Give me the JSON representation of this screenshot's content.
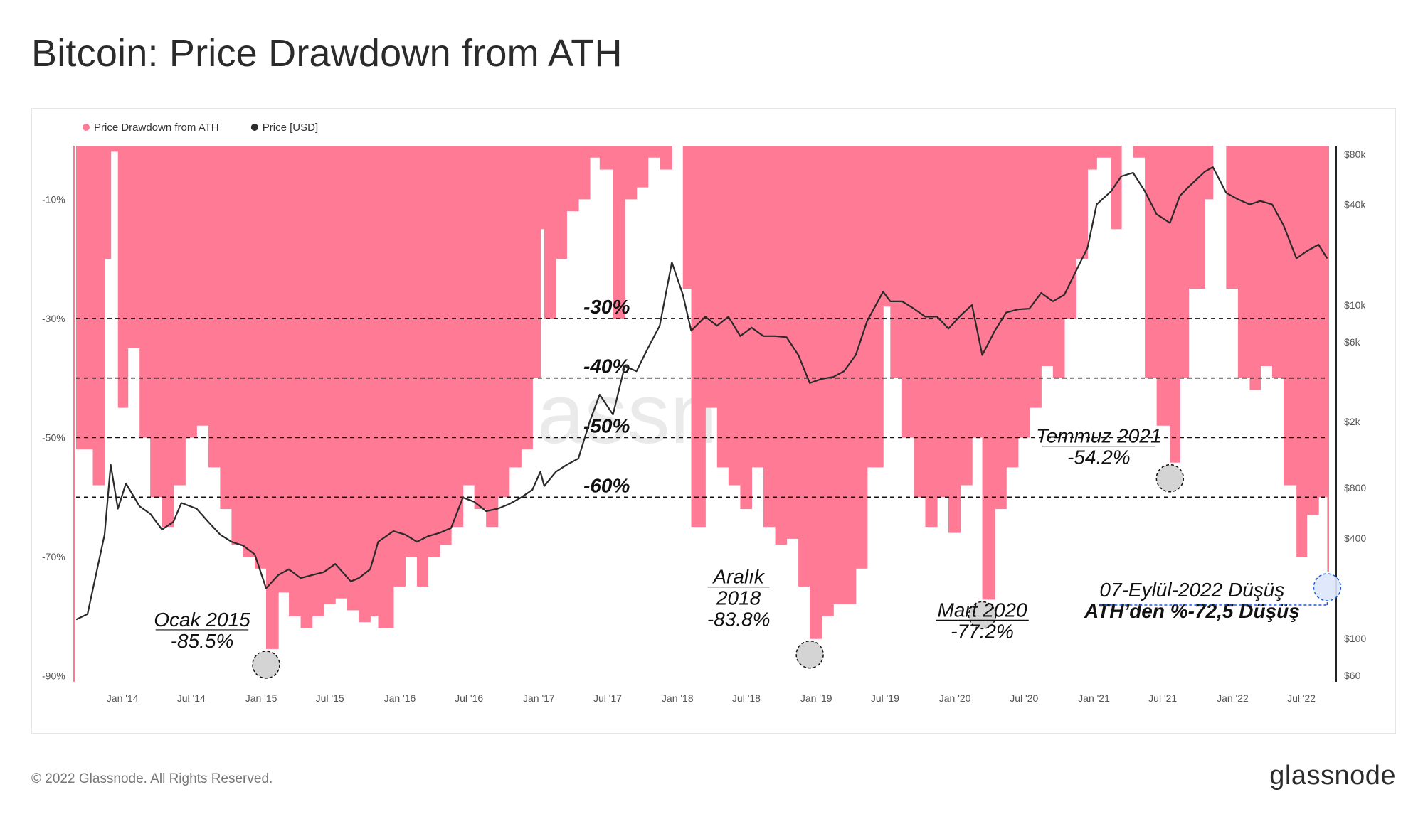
{
  "page": {
    "title": "Bitcoin: Price Drawdown from ATH",
    "copyright": "© 2022 Glassnode. All Rights Reserved.",
    "logo": "glassnode",
    "watermark": "glassnode"
  },
  "colors": {
    "drawdown": "#ff7a95",
    "price": "#2a2a2a",
    "highlight": "#1a5fe0",
    "marker": "#cccccc"
  },
  "chart_data": {
    "type": "area",
    "legend": [
      {
        "name": "Price Drawdown from ATH",
        "color": "#ff7a95"
      },
      {
        "name": "Price [USD]",
        "color": "#2a2a2a"
      }
    ],
    "legend_position": "top-left",
    "grid": false,
    "x_ticks": [
      "Jan '14",
      "Jul '14",
      "Jan '15",
      "Jul '15",
      "Jan '16",
      "Jul '16",
      "Jan '17",
      "Jul '17",
      "Jan '18",
      "Jul '18",
      "Jan '19",
      "Jul '19",
      "Jan '20",
      "Jul '20",
      "Jan '21",
      "Jul '21",
      "Jan '22",
      "Jul '22"
    ],
    "xlim": [
      "2013-09-01",
      "2022-09-10"
    ],
    "y_left": {
      "ticks": [
        "-10%",
        "-30%",
        "-50%",
        "-70%",
        "-90%"
      ],
      "tick_values": [
        -10,
        -30,
        -50,
        -70,
        -90
      ],
      "ylim": [
        -91,
        -1
      ]
    },
    "y_right": {
      "scale": "log",
      "ticks": [
        "$80k",
        "$40k",
        "$10k",
        "$6k",
        "$2k",
        "$800",
        "$400",
        "$100",
        "$60"
      ],
      "tick_values": [
        80000,
        40000,
        10000,
        6000,
        2000,
        800,
        400,
        100,
        60
      ],
      "ylim": [
        55,
        90000
      ]
    },
    "drawdown_series": {
      "name": "Price Drawdown from ATH",
      "x": [
        "2013-09-01",
        "2013-10-15",
        "2013-11-15",
        "2013-12-01",
        "2013-12-20",
        "2014-01-15",
        "2014-02-15",
        "2014-03-15",
        "2014-04-15",
        "2014-05-15",
        "2014-06-15",
        "2014-07-15",
        "2014-08-15",
        "2014-09-15",
        "2014-10-15",
        "2014-11-15",
        "2014-12-15",
        "2015-01-14",
        "2015-02-15",
        "2015-03-15",
        "2015-04-15",
        "2015-05-15",
        "2015-06-15",
        "2015-07-15",
        "2015-08-15",
        "2015-09-15",
        "2015-10-15",
        "2015-11-05",
        "2015-12-15",
        "2016-01-15",
        "2016-02-15",
        "2016-03-15",
        "2016-04-15",
        "2016-05-15",
        "2016-06-15",
        "2016-07-15",
        "2016-08-15",
        "2016-09-15",
        "2016-10-15",
        "2016-11-15",
        "2016-12-15",
        "2017-01-05",
        "2017-01-15",
        "2017-02-15",
        "2017-03-15",
        "2017-04-15",
        "2017-05-15",
        "2017-06-10",
        "2017-07-15",
        "2017-08-15",
        "2017-09-15",
        "2017-10-15",
        "2017-11-15",
        "2017-12-17",
        "2018-01-15",
        "2018-02-06",
        "2018-03-15",
        "2018-04-15",
        "2018-05-15",
        "2018-06-15",
        "2018-07-15",
        "2018-08-15",
        "2018-09-15",
        "2018-10-15",
        "2018-11-15",
        "2018-12-15",
        "2019-01-15",
        "2019-02-15",
        "2019-03-15",
        "2019-04-15",
        "2019-05-15",
        "2019-06-26",
        "2019-07-15",
        "2019-08-15",
        "2019-09-15",
        "2019-10-15",
        "2019-11-15",
        "2019-12-15",
        "2020-01-15",
        "2020-02-15",
        "2020-03-13",
        "2020-04-15",
        "2020-05-15",
        "2020-06-15",
        "2020-07-15",
        "2020-08-15",
        "2020-09-15",
        "2020-10-15",
        "2020-11-15",
        "2020-12-15",
        "2021-01-08",
        "2021-02-15",
        "2021-03-14",
        "2021-04-14",
        "2021-05-15",
        "2021-06-15",
        "2021-07-20",
        "2021-08-15",
        "2021-09-07",
        "2021-10-20",
        "2021-11-10",
        "2021-12-15",
        "2022-01-15",
        "2022-02-15",
        "2022-03-15",
        "2022-04-15",
        "2022-05-15",
        "2022-06-18",
        "2022-07-15",
        "2022-08-15",
        "2022-09-07"
      ],
      "values": [
        -52,
        -58,
        -20,
        -2,
        -45,
        -35,
        -50,
        -60,
        -65,
        -58,
        -50,
        -48,
        -55,
        -62,
        -68,
        -70,
        -72,
        -85.5,
        -76,
        -80,
        -82,
        -80,
        -78,
        -77,
        -79,
        -81,
        -80,
        -82,
        -75,
        -70,
        -75,
        -70,
        -68,
        -65,
        -58,
        -62,
        -65,
        -60,
        -55,
        -52,
        -40,
        -15,
        -30,
        -20,
        -12,
        -10,
        -3,
        -5,
        -30,
        -10,
        -8,
        -3,
        -5,
        -1,
        -25,
        -65,
        -45,
        -55,
        -58,
        -62,
        -55,
        -65,
        -68,
        -67,
        -75,
        -83.8,
        -80,
        -78,
        -78,
        -72,
        -55,
        -28,
        -40,
        -50,
        -60,
        -65,
        -60,
        -66,
        -58,
        -50,
        -77.2,
        -62,
        -55,
        -50,
        -45,
        -38,
        -40,
        -30,
        -20,
        -5,
        -3,
        -15,
        -1,
        -3,
        -40,
        -48,
        -54.2,
        -40,
        -25,
        -10,
        -1,
        -25,
        -40,
        -42,
        -38,
        -40,
        -58,
        -70,
        -63,
        -60,
        -72.5
      ]
    },
    "price_series": {
      "name": "Price [USD]",
      "x": [
        "2013-09-01",
        "2013-10-01",
        "2013-11-15",
        "2013-12-01",
        "2013-12-20",
        "2014-01-10",
        "2014-02-15",
        "2014-03-15",
        "2014-04-15",
        "2014-05-15",
        "2014-06-05",
        "2014-07-15",
        "2014-08-15",
        "2014-09-15",
        "2014-10-15",
        "2014-11-15",
        "2014-12-15",
        "2015-01-14",
        "2015-02-15",
        "2015-03-15",
        "2015-04-15",
        "2015-05-15",
        "2015-06-15",
        "2015-07-15",
        "2015-08-25",
        "2015-09-15",
        "2015-10-15",
        "2015-11-05",
        "2015-12-15",
        "2016-01-15",
        "2016-02-15",
        "2016-03-15",
        "2016-04-15",
        "2016-05-15",
        "2016-06-15",
        "2016-07-15",
        "2016-08-15",
        "2016-09-15",
        "2016-10-15",
        "2016-11-15",
        "2016-12-15",
        "2017-01-05",
        "2017-01-15",
        "2017-02-15",
        "2017-03-15",
        "2017-04-15",
        "2017-05-15",
        "2017-06-10",
        "2017-07-15",
        "2017-08-15",
        "2017-09-15",
        "2017-10-15",
        "2017-11-15",
        "2017-12-17",
        "2018-01-15",
        "2018-02-06",
        "2018-03-15",
        "2018-04-15",
        "2018-05-15",
        "2018-06-15",
        "2018-07-15",
        "2018-08-15",
        "2018-09-15",
        "2018-10-15",
        "2018-11-15",
        "2018-12-15",
        "2019-01-15",
        "2019-02-15",
        "2019-03-15",
        "2019-04-15",
        "2019-05-15",
        "2019-06-26",
        "2019-07-15",
        "2019-08-15",
        "2019-09-15",
        "2019-10-15",
        "2019-11-15",
        "2019-12-15",
        "2020-01-15",
        "2020-02-15",
        "2020-03-13",
        "2020-04-15",
        "2020-05-15",
        "2020-06-15",
        "2020-07-15",
        "2020-08-15",
        "2020-09-15",
        "2020-10-15",
        "2020-11-15",
        "2020-12-15",
        "2021-01-08",
        "2021-02-15",
        "2021-03-14",
        "2021-04-14",
        "2021-05-15",
        "2021-06-15",
        "2021-07-20",
        "2021-08-15",
        "2021-09-07",
        "2021-10-20",
        "2021-11-10",
        "2021-12-15",
        "2022-01-15",
        "2022-02-15",
        "2022-03-15",
        "2022-04-15",
        "2022-05-15",
        "2022-06-18",
        "2022-07-15",
        "2022-08-15",
        "2022-09-07"
      ],
      "values": [
        130,
        140,
        420,
        1100,
        600,
        850,
        620,
        560,
        450,
        500,
        650,
        600,
        500,
        420,
        380,
        360,
        320,
        200,
        240,
        260,
        230,
        240,
        250,
        280,
        220,
        230,
        260,
        380,
        440,
        420,
        380,
        410,
        430,
        460,
        700,
        660,
        580,
        600,
        640,
        700,
        780,
        1000,
        820,
        1000,
        1100,
        1200,
        2000,
        2900,
        2200,
        4300,
        4000,
        5500,
        7500,
        18000,
        11500,
        7000,
        8500,
        7500,
        8500,
        6500,
        7300,
        6500,
        6500,
        6400,
        5000,
        3400,
        3600,
        3700,
        4000,
        5000,
        8000,
        12000,
        10500,
        10500,
        9500,
        8500,
        8500,
        7200,
        8600,
        10000,
        5000,
        7000,
        9000,
        9400,
        9500,
        11800,
        10500,
        11500,
        16000,
        22000,
        40000,
        48000,
        59000,
        62000,
        48000,
        35000,
        31000,
        45000,
        51000,
        63000,
        67000,
        47000,
        43000,
        40000,
        42000,
        40000,
        30000,
        19000,
        21000,
        23000,
        19000
      ]
    },
    "reference_lines": [
      {
        "value": -30,
        "label": "-30%"
      },
      {
        "value": -40,
        "label": "-40%"
      },
      {
        "value": -50,
        "label": "-50%"
      },
      {
        "value": -60,
        "label": "-60%"
      }
    ],
    "annotations": [
      {
        "date": "2015-01-14",
        "value": -85.5,
        "lines": [
          "Ocak 2015",
          "-85.5%"
        ]
      },
      {
        "date": "2018-12-15",
        "value": -83.8,
        "lines": [
          "Aralık",
          "2018",
          "-83.8%"
        ]
      },
      {
        "date": "2020-03-13",
        "value": -77.2,
        "lines": [
          "Mart 2020",
          "-77.2%"
        ]
      },
      {
        "date": "2021-07-20",
        "value": -54.2,
        "lines": [
          "Temmuz 2021",
          "-54.2%"
        ]
      },
      {
        "date": "2022-09-07",
        "value": -72.5,
        "lines": [
          "07-Eylül-2022 Düşüş",
          "ATH’den %-72,5 Düşüş"
        ],
        "highlight": true
      }
    ]
  }
}
